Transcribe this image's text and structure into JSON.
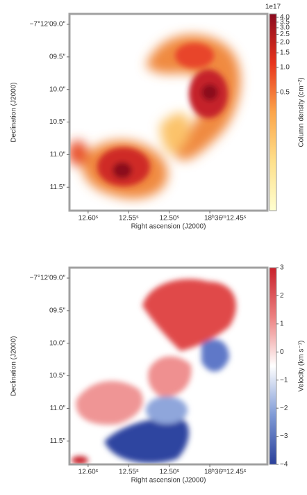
{
  "chart_data": [
    {
      "type": "image",
      "xlabel": "Right ascension (J2000)",
      "ylabel": "Declination (J2000)",
      "xlim": [
        12.623,
        12.379
      ],
      "xticks": [
        {
          "value": 12.6,
          "label": "12.60ˢ"
        },
        {
          "value": 12.55,
          "label": "12.55ˢ"
        },
        {
          "value": 12.5,
          "label": "12.50ˢ"
        },
        {
          "value": 12.45,
          "label": "18ʰ36ᵐ12.45ˢ"
        }
      ],
      "ylim": [
        8.84,
        11.86
      ],
      "yticks": [
        {
          "value": 9.0,
          "label": "−7°12′09.0″"
        },
        {
          "value": 9.5,
          "label": "09.5″"
        },
        {
          "value": 10.0,
          "label": "10.0″"
        },
        {
          "value": 10.5,
          "label": "10.5″"
        },
        {
          "value": 11.0,
          "label": "11.0″"
        },
        {
          "value": 11.5,
          "label": "11.5″"
        }
      ],
      "colorbar": {
        "label": "Column density (cm⁻²)",
        "offset_label": "1e17",
        "scale": "log",
        "lim": [
          0.019,
          4.4
        ],
        "ticks": [
          {
            "value": 4,
            "label": "4.0"
          },
          3.5,
          {
            "value": 3,
            "label": "3.0"
          },
          2.5,
          {
            "value": 2,
            "label": "2.0"
          },
          1.5,
          {
            "value": 1,
            "label": "1.0"
          },
          0.5
        ],
        "colors": [
          "#ffffd0",
          "#fee08b",
          "#fca54a",
          "#e8341c",
          "#8b0a1f"
        ]
      }
    },
    {
      "type": "image",
      "xlabel": "Right ascension (J2000)",
      "ylabel": "Declination (J2000)",
      "xlim": [
        12.623,
        12.379
      ],
      "xticks": [
        {
          "value": 12.6,
          "label": "12.60ˢ"
        },
        {
          "value": 12.55,
          "label": "12.55ˢ"
        },
        {
          "value": 12.5,
          "label": "12.50ˢ"
        },
        {
          "value": 12.45,
          "label": "18ʰ36ᵐ12.45ˢ"
        }
      ],
      "ylim": [
        8.84,
        11.86
      ],
      "yticks": [
        {
          "value": 9.0,
          "label": "−7°12′09.0″"
        },
        {
          "value": 9.5,
          "label": "09.5″"
        },
        {
          "value": 10.0,
          "label": "10.0″"
        },
        {
          "value": 10.5,
          "label": "10.5″"
        },
        {
          "value": 11.0,
          "label": "11.0″"
        },
        {
          "value": 11.5,
          "label": "11.5″"
        }
      ],
      "colorbar": {
        "label": "Velocity (km s⁻¹)",
        "scale": "linear",
        "lim": [
          -4,
          3
        ],
        "ticks": [
          3,
          2,
          1,
          0,
          {
            "value": -1,
            "label": "−1"
          },
          {
            "value": -2,
            "label": "−2"
          },
          {
            "value": -3,
            "label": "−3"
          },
          {
            "value": -4,
            "label": "−4"
          }
        ],
        "colors": [
          "#2a3f9a",
          "#7f9ad6",
          "#ffffff",
          "#ec8080",
          "#c8202a"
        ]
      }
    }
  ]
}
